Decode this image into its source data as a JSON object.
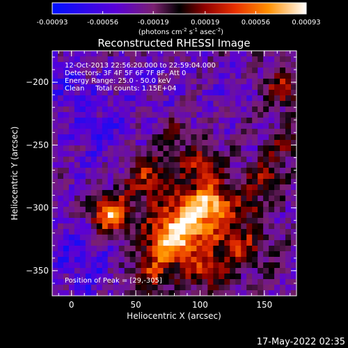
{
  "chart_data": {
    "type": "heatmap",
    "title": "Reconstructed RHESSI Image",
    "xlabel": "Heliocentric X (arcsec)",
    "ylabel": "Heliocentric Y (arcsec)",
    "xlim": [
      -15,
      175
    ],
    "ylim": [
      -370,
      -175
    ],
    "xticks": [
      "0",
      "50",
      "100",
      "150"
    ],
    "xtick_values": [
      0,
      50,
      100,
      150
    ],
    "yticks": [
      "-200",
      "-250",
      "-300",
      "-350"
    ],
    "ytick_values": [
      -200,
      -250,
      -300,
      -350
    ],
    "colorbar": {
      "ticks": [
        "-0.00093",
        "-0.00056",
        "-0.00019",
        "0.00019",
        "0.00056",
        "0.00093"
      ],
      "tick_values": [
        -0.00093,
        -0.00056,
        -0.00019,
        0.00019,
        0.00056,
        0.00093
      ],
      "range": [
        -0.00093,
        0.00093
      ],
      "unit_label": {
        "prefix": "(photons cm",
        "exp1": "-2",
        "mid1": " s",
        "exp2": "-1",
        "mid2": " asec",
        "exp3": "-2",
        "suffix": ")"
      }
    },
    "annotations": [
      "12-Oct-2013 22:56:20.000 to 22:59:04.000",
      "Detectors: 3F 4F 5F 6F 7F 8F, Att 0",
      "Energy Range: 25.0 - 50.0 keV",
      "Clean     Total counts: 1.15E+04"
    ],
    "peak_label": "Position of Peak = [29,-305]",
    "peak": [
      29,
      -305
    ]
  },
  "timestamp": "17-May-2022 02:35",
  "colors": {
    "background": "#000000",
    "text": "#ffffff"
  }
}
